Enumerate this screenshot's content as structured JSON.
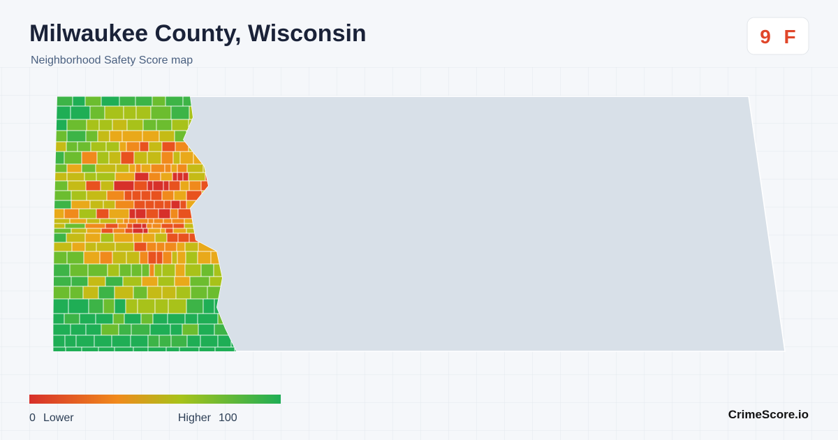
{
  "header": {
    "title": "Milwaukee County, Wisconsin",
    "subtitle": "Neighborhood Safety Score map"
  },
  "badge": {
    "score": 9,
    "grade": "F"
  },
  "legend": {
    "min": 0,
    "min_label": "Lower",
    "max_label": "Higher",
    "max": 100
  },
  "brand": "CrimeScore.io"
}
